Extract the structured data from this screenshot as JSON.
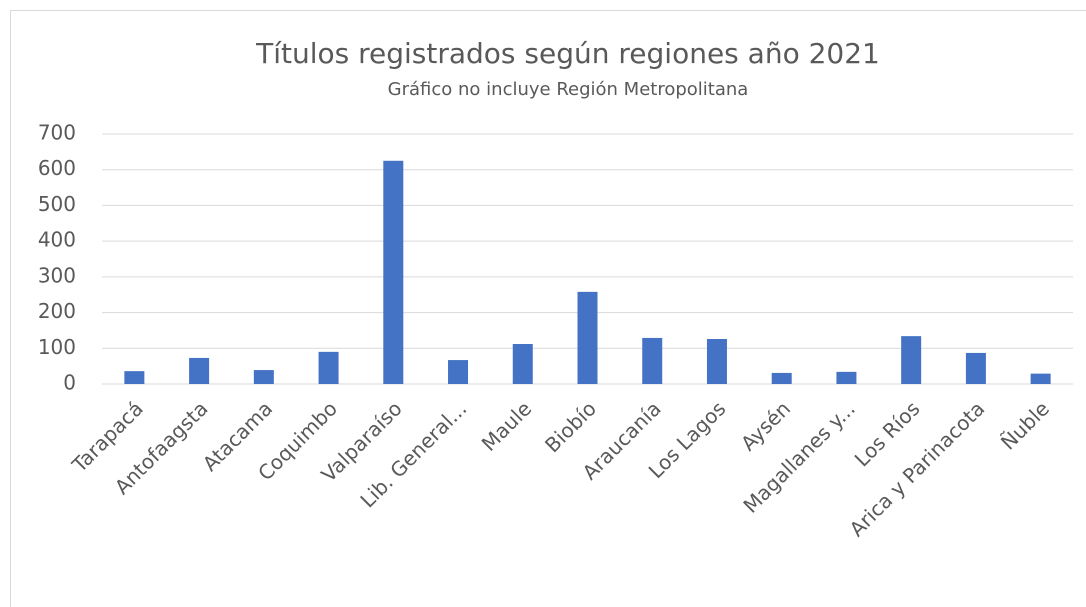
{
  "chart_data": {
    "type": "bar",
    "title": "Títulos registrados según regiones año 2021",
    "subtitle": "Gráfico no incluye Región Metropolitana",
    "categories": [
      "Tarapacá",
      "Antofaagsta",
      "Atacama",
      "Coquimbo",
      "Valparaíso",
      "Lib. General...",
      "Maule",
      "Biobío",
      "Araucanía",
      "Los Lagos",
      "Aysén",
      "Magallanes y...",
      "Los Ríos",
      "Arica y Parinacota",
      "Ñuble"
    ],
    "values": [
      36,
      73,
      39,
      90,
      625,
      67,
      112,
      258,
      129,
      126,
      31,
      34,
      134,
      87,
      29
    ],
    "color": "#4472c4",
    "ylim": [
      0,
      700
    ],
    "yticks": [
      0,
      100,
      200,
      300,
      400,
      500,
      600,
      700
    ],
    "grid": true
  }
}
